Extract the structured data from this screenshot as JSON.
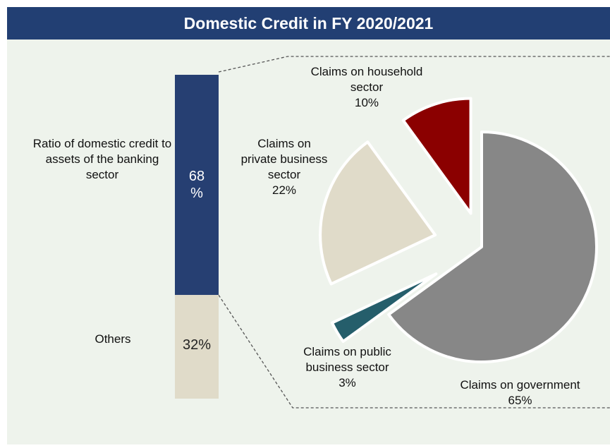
{
  "title": "Domestic Credit in FY 2020/2021",
  "colors": {
    "title_bg": "#223f73",
    "panel_bg": "#eef3ec",
    "bar_domestic": "#263f72",
    "bar_others": "#e0dbc9",
    "government": "#878787",
    "public_business": "#255e6b",
    "private_business": "#e0dbc9",
    "household": "#8b0000"
  },
  "chart_data": [
    {
      "type": "bar",
      "stacked": true,
      "categories": [
        "Ratio of domestic credit to assets of the banking sector",
        "Others"
      ],
      "values": [
        68,
        32
      ],
      "value_labels": [
        "68\n%",
        "32%"
      ]
    },
    {
      "type": "pie",
      "categories": [
        "Claims on government",
        "Claims on public business sector",
        "Claims on private business sector",
        "Claims on household sector"
      ],
      "values": [
        65,
        3,
        22,
        10
      ],
      "labels": [
        "Claims on government\n65%",
        "Claims on public\nbusiness sector\n3%",
        "Claims on\nprivate business\nsector\n22%",
        "Claims on household\nsector\n10%"
      ]
    }
  ]
}
